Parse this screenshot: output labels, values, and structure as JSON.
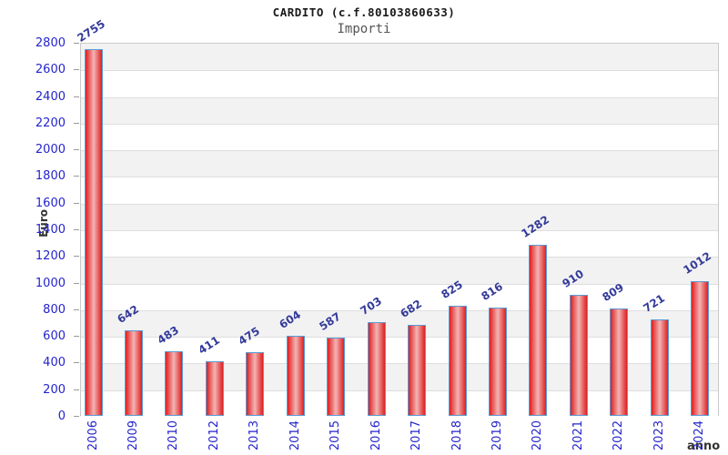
{
  "header": {
    "title": "CARDITO (c.f.80103860633)",
    "subtitle": "Importi"
  },
  "chart_data": {
    "type": "bar",
    "title": "CARDITO (c.f.80103860633)",
    "subtitle": "Importi",
    "xlabel": "anno",
    "ylabel": "Euro",
    "categories": [
      "2006",
      "2009",
      "2010",
      "2012",
      "2013",
      "2014",
      "2015",
      "2016",
      "2017",
      "2018",
      "2019",
      "2020",
      "2021",
      "2022",
      "2023",
      "2024"
    ],
    "values": [
      2755,
      642,
      483,
      411,
      475,
      604,
      587,
      703,
      682,
      825,
      816,
      1282,
      910,
      809,
      721,
      1012
    ],
    "ylim": [
      0,
      2800
    ],
    "ytick_step": 200,
    "grid": "horizontal-bands-alternating",
    "legend": "none",
    "colors": {
      "bar_edge": "#5b9bd5",
      "bar_fill_dark": "#df1f1f",
      "bar_fill_light": "#f3b4b4",
      "tick_label": "#2424cd",
      "value_label": "#333a99",
      "band_gray": "#f2f2f2",
      "band_white": "#ffffff",
      "grid_line": "#dedede",
      "axis_text": "#333333"
    }
  }
}
